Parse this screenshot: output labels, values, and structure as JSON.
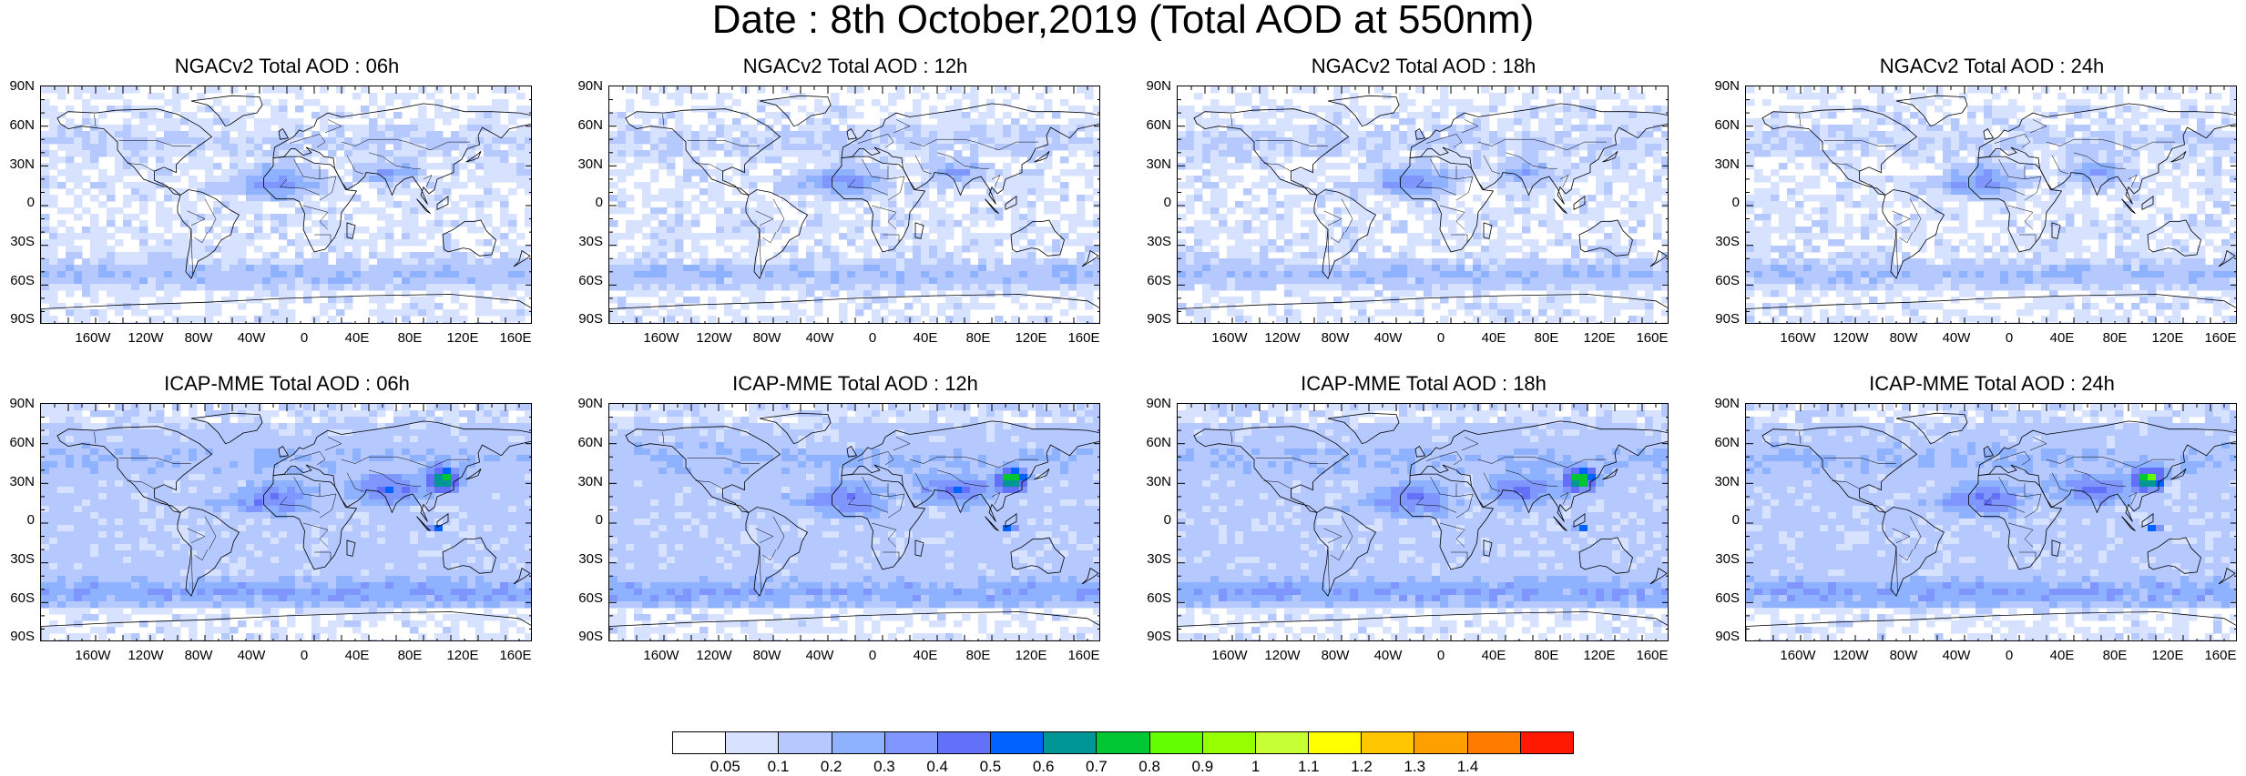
{
  "main_title": "Date : 8th October,2019 (Total AOD at 550nm)",
  "lat_labels": [
    "90N",
    "60N",
    "30N",
    "0",
    "30S",
    "60S",
    "90S"
  ],
  "lon_labels": [
    "160W",
    "120W",
    "80W",
    "40W",
    "0",
    "40E",
    "80E",
    "120E",
    "160E"
  ],
  "panels": [
    {
      "title": "NGACv2 Total AOD : 06h",
      "model": "NGACv2",
      "hour": "06h"
    },
    {
      "title": "NGACv2 Total AOD : 12h",
      "model": "NGACv2",
      "hour": "12h"
    },
    {
      "title": "NGACv2 Total AOD : 18h",
      "model": "NGACv2",
      "hour": "18h"
    },
    {
      "title": "NGACv2 Total AOD : 24h",
      "model": "NGACv2",
      "hour": "24h"
    },
    {
      "title": "ICAP-MME Total AOD : 06h",
      "model": "ICAP-MME",
      "hour": "06h"
    },
    {
      "title": "ICAP-MME Total AOD : 12h",
      "model": "ICAP-MME",
      "hour": "12h"
    },
    {
      "title": "ICAP-MME Total AOD : 18h",
      "model": "ICAP-MME",
      "hour": "18h"
    },
    {
      "title": "ICAP-MME Total AOD : 24h",
      "model": "ICAP-MME",
      "hour": "24h"
    }
  ],
  "colorbar": {
    "labels": [
      "0.05",
      "0.1",
      "0.2",
      "0.3",
      "0.4",
      "0.5",
      "0.6",
      "0.7",
      "0.8",
      "0.9",
      "1",
      "1.1",
      "1.2",
      "1.3",
      "1.4"
    ],
    "colors": [
      "#ffffff",
      "#d6e2ff",
      "#b5c9ff",
      "#8eb2ff",
      "#7f96ff",
      "#6370f8",
      "#0063ff",
      "#009696",
      "#00c633",
      "#63ff00",
      "#96ff00",
      "#c6ff33",
      "#ffff00",
      "#ffc600",
      "#ffa000",
      "#ff7c00",
      "#ff1900"
    ]
  }
}
